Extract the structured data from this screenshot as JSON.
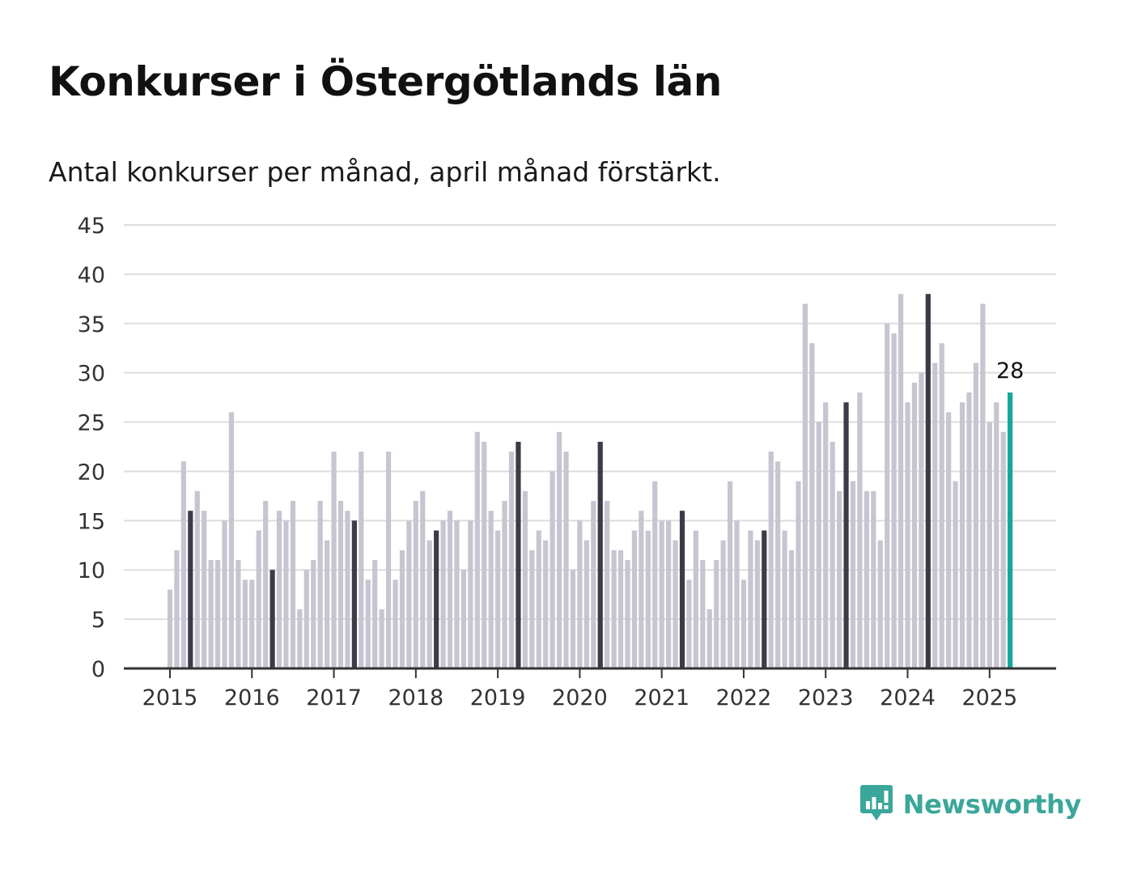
{
  "header": {
    "title": "Konkurser i Östergötlands län",
    "subtitle": "Antal konkurser per månad, april månad förstärkt."
  },
  "brand": {
    "name": "Newsworthy",
    "icon": "newsworthy-logo-icon",
    "color": "#3aa79a"
  },
  "colors": {
    "bar_default": "#c6c5d1",
    "bar_april": "#3c3b48",
    "bar_latest": "#14a89c",
    "grid": "#dddddd",
    "axis": "#333333"
  },
  "chart_data": {
    "type": "bar",
    "title": "Konkurser i Östergötlands län",
    "subtitle": "Antal konkurser per månad, april månad förstärkt.",
    "xlabel": "",
    "ylabel": "",
    "ylim": [
      0,
      45
    ],
    "yticks": [
      0,
      5,
      10,
      15,
      20,
      25,
      30,
      35,
      40,
      45
    ],
    "xticks": [
      "2015",
      "2016",
      "2017",
      "2018",
      "2019",
      "2020",
      "2021",
      "2022",
      "2023",
      "2024",
      "2025"
    ],
    "grid": true,
    "start": "2015-01",
    "end": "2025-04",
    "highlight_month": "april",
    "annotation": {
      "month": "2025-04",
      "text": "28"
    },
    "series": [
      {
        "values": [
          8,
          12,
          21,
          16,
          18,
          16,
          11,
          11,
          15,
          26,
          11,
          9,
          9,
          14,
          17,
          10,
          16,
          15,
          17,
          6,
          10,
          11,
          17,
          13,
          22,
          17,
          16,
          15,
          22,
          9,
          11,
          6,
          22,
          9,
          12,
          15,
          17,
          18,
          13,
          14,
          15,
          16,
          15,
          10,
          15,
          24,
          23,
          16,
          14,
          17,
          22,
          23,
          18,
          12,
          14,
          13,
          20,
          24,
          22,
          10,
          15,
          13,
          17,
          23,
          17,
          12,
          12,
          11,
          14,
          16,
          14,
          19,
          15,
          15,
          13,
          16,
          9,
          14,
          11,
          6,
          11,
          13,
          19,
          15,
          9,
          14,
          13,
          14,
          22,
          21,
          14,
          12,
          19,
          37,
          33,
          25,
          27,
          23,
          18,
          27,
          19,
          28,
          18,
          18,
          13,
          35,
          34,
          38,
          27,
          29,
          30,
          38,
          31,
          33,
          26,
          19,
          27,
          28,
          31,
          37,
          25,
          27,
          24,
          28
        ]
      }
    ]
  }
}
